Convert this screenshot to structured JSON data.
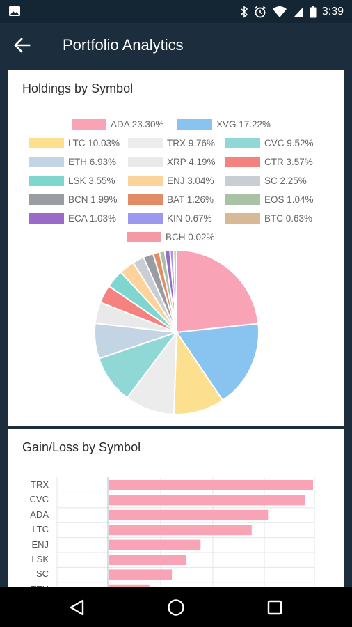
{
  "status_bar": {
    "time": "3:39",
    "icons": [
      "image-icon",
      "bluetooth-icon",
      "alarm-icon",
      "wifi-icon",
      "signal-icon",
      "battery-icon"
    ]
  },
  "app_bar": {
    "title": "Portfolio Analytics",
    "back_icon": "arrow-left-icon"
  },
  "holdings_card": {
    "title": "Holdings by Symbol"
  },
  "gain_card": {
    "title": "Gain/Loss by Symbol"
  },
  "nav_bar": {
    "icons": [
      "back-triangle-icon",
      "home-circle-icon",
      "recents-square-icon"
    ]
  },
  "chart_data": [
    {
      "type": "pie",
      "title": "Holdings by Symbol",
      "legend_placement": "top",
      "slices": [
        {
          "label": "ADA",
          "value": 23.3,
          "legend": "ADA 23.30%",
          "color": "#f9a3b7"
        },
        {
          "label": "XVG",
          "value": 17.22,
          "legend": "XVG 17.22%",
          "color": "#88c4ef"
        },
        {
          "label": "LTC",
          "value": 10.03,
          "legend": "LTC 10.03%",
          "color": "#fde08f"
        },
        {
          "label": "TRX",
          "value": 9.76,
          "legend": "TRX 9.76%",
          "color": "#ececec"
        },
        {
          "label": "CVC",
          "value": 9.52,
          "legend": "CVC 9.52%",
          "color": "#8fd8d5"
        },
        {
          "label": "ETH",
          "value": 6.93,
          "legend": "ETH 6.93%",
          "color": "#c3d5e5"
        },
        {
          "label": "XRP",
          "value": 4.19,
          "legend": "XRP 4.19%",
          "color": "#e9e9e9"
        },
        {
          "label": "CTR",
          "value": 3.57,
          "legend": "CTR 3.57%",
          "color": "#f6827f"
        },
        {
          "label": "LSK",
          "value": 3.55,
          "legend": "LSK 3.55%",
          "color": "#7ed6ce"
        },
        {
          "label": "ENJ",
          "value": 3.04,
          "legend": "ENJ 3.04%",
          "color": "#fdd39c"
        },
        {
          "label": "SC",
          "value": 2.25,
          "legend": "SC 2.25%",
          "color": "#c9cdd4"
        },
        {
          "label": "BCN",
          "value": 1.99,
          "legend": "BCN 1.99%",
          "color": "#999ca1"
        },
        {
          "label": "BAT",
          "value": 1.26,
          "legend": "BAT 1.26%",
          "color": "#e28b66"
        },
        {
          "label": "EOS",
          "value": 1.04,
          "legend": "EOS 1.04%",
          "color": "#a9c2a3"
        },
        {
          "label": "ECA",
          "value": 1.03,
          "legend": "ECA 1.03%",
          "color": "#9b6ac8"
        },
        {
          "label": "KIN",
          "value": 0.67,
          "legend": "KIN 0.67%",
          "color": "#9d98ef"
        },
        {
          "label": "BTC",
          "value": 0.63,
          "legend": "BTC 0.63%",
          "color": "#d8b995"
        },
        {
          "label": "BCH",
          "value": 0.02,
          "legend": "BCH 0.02%",
          "color": "#f49aa7"
        }
      ]
    },
    {
      "type": "bar",
      "orientation": "horizontal",
      "title": "Gain/Loss by Symbol",
      "categories": [
        "TRX",
        "CVC",
        "ADA",
        "LTC",
        "ENJ",
        "LSK",
        "SC",
        "ETH"
      ],
      "values": [
        100,
        96,
        78,
        70,
        45,
        38,
        31,
        20
      ],
      "color": "#f9a3b7",
      "grid": true
    }
  ]
}
